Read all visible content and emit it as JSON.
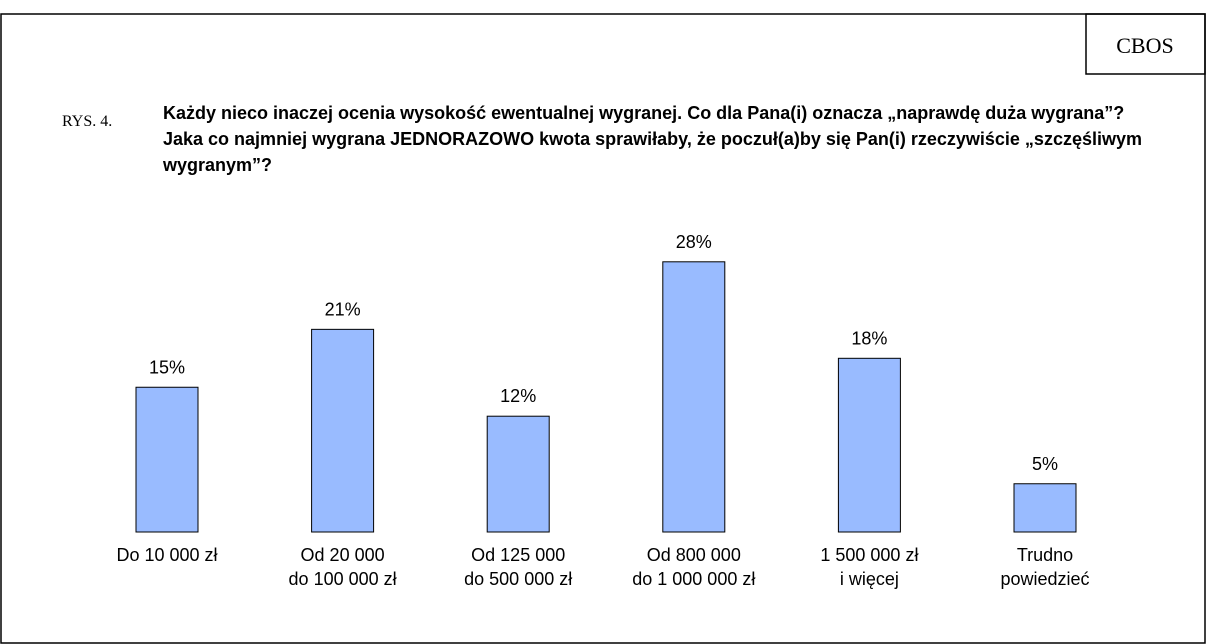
{
  "header": {
    "badge": "CBOS",
    "figure_label": "RYS. 4."
  },
  "chart_data": {
    "type": "bar",
    "title": "Każdy nieco inaczej ocenia wysokość ewentualnej wygranej. Co dla Pana(i) oznacza „naprawdę duża wygrana”? Jaka co najmniej wygrana JEDNORAZOWO kwota sprawiłaby, że poczuł(a)by się Pan(i) rzeczywiście „szczęśliwym wygranym”?",
    "categories": [
      [
        "Do 10 000 zł"
      ],
      [
        "Od 20 000",
        "do 100 000 zł"
      ],
      [
        "Od 125 000",
        "do 500 000 zł"
      ],
      [
        "Od 800 000",
        "do 1 000 000 zł"
      ],
      [
        "1 500 000 zł",
        "i więcej"
      ],
      [
        "Trudno",
        "powiedzieć"
      ]
    ],
    "values": [
      15,
      21,
      12,
      28,
      18,
      5
    ],
    "value_labels": [
      "15%",
      "21%",
      "12%",
      "28%",
      "18%",
      "5%"
    ],
    "color": "#99bbff"
  }
}
